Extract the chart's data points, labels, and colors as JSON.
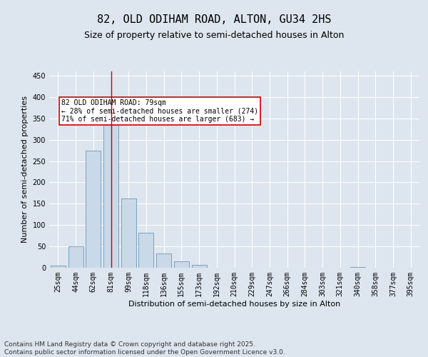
{
  "title_line1": "82, OLD ODIHAM ROAD, ALTON, GU34 2HS",
  "title_line2": "Size of property relative to semi-detached houses in Alton",
  "xlabel": "Distribution of semi-detached houses by size in Alton",
  "ylabel": "Number of semi-detached properties",
  "categories": [
    "25sqm",
    "44sqm",
    "62sqm",
    "81sqm",
    "99sqm",
    "118sqm",
    "136sqm",
    "155sqm",
    "173sqm",
    "192sqm",
    "210sqm",
    "229sqm",
    "247sqm",
    "266sqm",
    "284sqm",
    "303sqm",
    "321sqm",
    "340sqm",
    "358sqm",
    "377sqm",
    "395sqm"
  ],
  "values": [
    5,
    50,
    275,
    335,
    163,
    82,
    33,
    15,
    7,
    0,
    0,
    0,
    0,
    0,
    0,
    0,
    0,
    2,
    0,
    0,
    0
  ],
  "bar_color": "#c9d9e8",
  "bar_edge_color": "#5a8ab0",
  "red_line_index": 3,
  "red_line_color": "#cc0000",
  "annotation_text": "82 OLD ODIHAM ROAD: 79sqm\n← 28% of semi-detached houses are smaller (274)\n71% of semi-detached houses are larger (683) →",
  "annotation_box_color": "#ffffff",
  "annotation_box_edge": "#cc0000",
  "ylim": [
    0,
    460
  ],
  "yticks": [
    0,
    50,
    100,
    150,
    200,
    250,
    300,
    350,
    400,
    450
  ],
  "background_color": "#dde5ee",
  "plot_background": "#dde5ee",
  "grid_color": "#ffffff",
  "footer_text": "Contains HM Land Registry data © Crown copyright and database right 2025.\nContains public sector information licensed under the Open Government Licence v3.0.",
  "title_fontsize": 11,
  "subtitle_fontsize": 9,
  "axis_label_fontsize": 8,
  "tick_fontsize": 7,
  "annotation_fontsize": 7,
  "footer_fontsize": 6.5
}
